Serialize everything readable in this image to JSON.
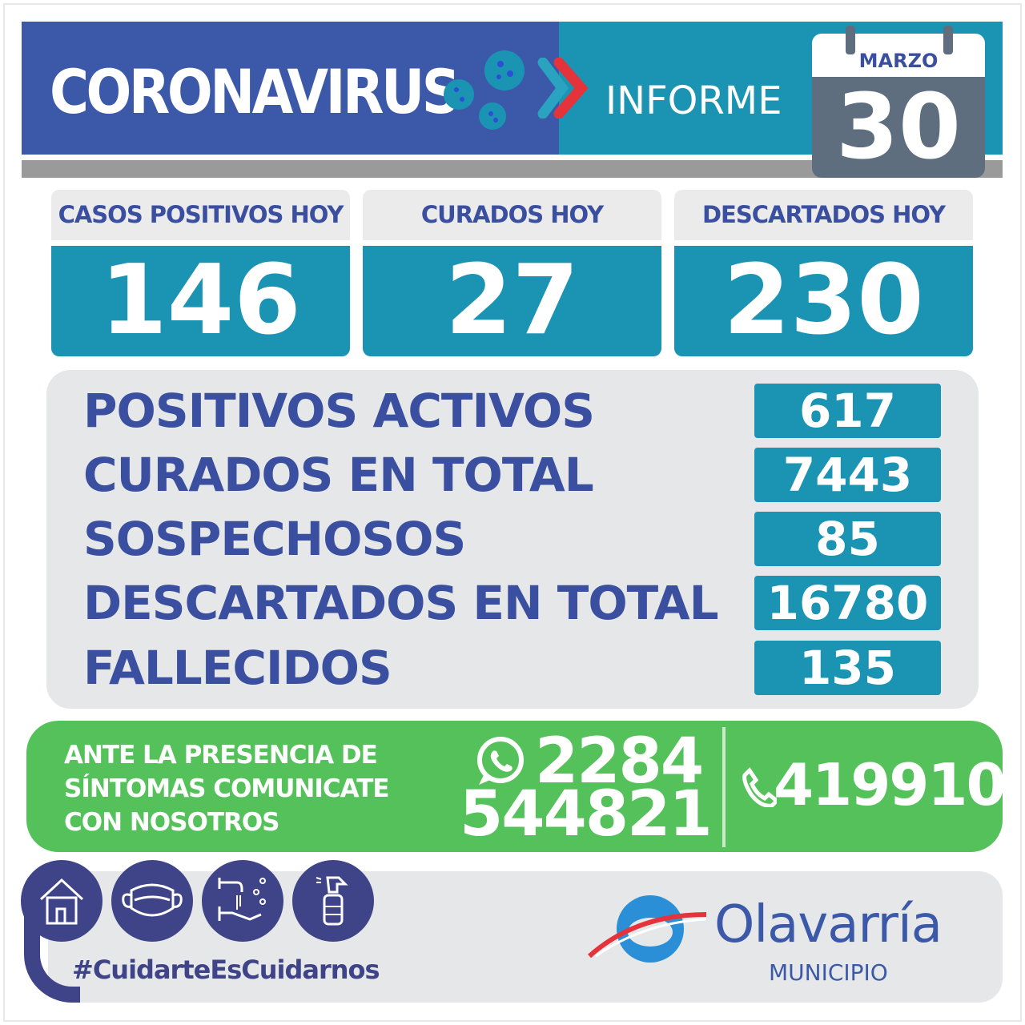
{
  "header": {
    "title": "CORONAVIRUS",
    "subtitle": "INFORME",
    "calendar": {
      "month": "MARZO",
      "day": "30"
    }
  },
  "today": [
    {
      "label": "CASOS POSITIVOS HOY",
      "value": "146"
    },
    {
      "label": "CURADOS HOY",
      "value": "27"
    },
    {
      "label": "DESCARTADOS HOY",
      "value": "230"
    }
  ],
  "stats": [
    {
      "label": "POSITIVOS ACTIVOS",
      "value": "617"
    },
    {
      "label": "CURADOS EN TOTAL",
      "value": "7443"
    },
    {
      "label": "SOSPECHOSOS",
      "value": "85"
    },
    {
      "label": "DESCARTADOS EN TOTAL",
      "value": "16780"
    },
    {
      "label": "FALLECIDOS",
      "value": "135"
    }
  ],
  "contact": {
    "line1": "ANTE LA PRESENCIA DE",
    "line2": "SÍNTOMAS COMUNICATE",
    "line3": "CON NOSOTROS",
    "whatsapp_part1": "2284",
    "whatsapp_part2": "544821",
    "phone": "419910"
  },
  "footer": {
    "hashtag": "#CuidarteEsCuidarnos",
    "logo_name": "Olavarría",
    "logo_sub": "MUNICIPIO"
  },
  "colors": {
    "blue": "#3b59a8",
    "teal": "#1b93b3",
    "green": "#55c15a",
    "navy": "#3f4488",
    "red": "#e5333b"
  }
}
